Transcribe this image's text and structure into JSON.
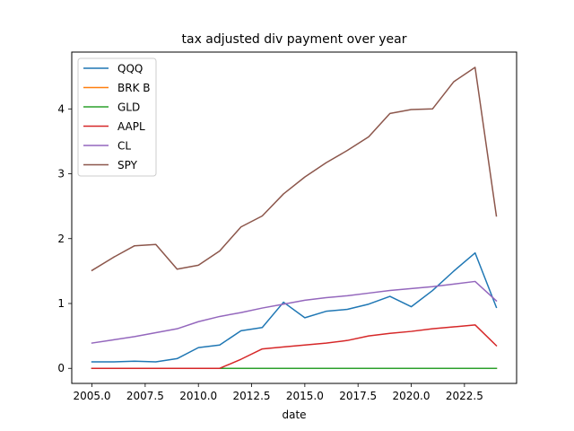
{
  "chart_data": {
    "type": "line",
    "title": "tax adjusted div payment over year",
    "xlabel": "date",
    "ylabel": "",
    "xlim": [
      2004.05,
      2024.95
    ],
    "ylim": [
      -0.232,
      4.876
    ],
    "xticks": [
      2005,
      2007.5,
      2010,
      2012.5,
      2015,
      2017.5,
      2020,
      2022.5
    ],
    "xtick_labels": [
      "2005.0",
      "2007.5",
      "2010.0",
      "2012.5",
      "2015.0",
      "2017.5",
      "2020.0",
      "2022.5"
    ],
    "yticks": [
      0,
      1,
      2,
      3,
      4
    ],
    "ytick_labels": [
      "0",
      "1",
      "2",
      "3",
      "4"
    ],
    "grid": false,
    "legend_position": "upper-left",
    "x": [
      2005,
      2006,
      2007,
      2008,
      2009,
      2010,
      2011,
      2012,
      2013,
      2014,
      2015,
      2016,
      2017,
      2018,
      2019,
      2020,
      2021,
      2022,
      2023,
      2024
    ],
    "series": [
      {
        "name": "QQQ",
        "color": "#1f77b4",
        "values": [
          0.1,
          0.1,
          0.11,
          0.1,
          0.15,
          0.32,
          0.36,
          0.58,
          0.63,
          1.02,
          0.78,
          0.88,
          0.91,
          0.99,
          1.11,
          0.95,
          1.2,
          1.5,
          1.78,
          0.94
        ]
      },
      {
        "name": "BRK B",
        "color": "#ff7f0e",
        "values": [
          0,
          0,
          0,
          0,
          0,
          0,
          0,
          0,
          0,
          0,
          0,
          0,
          0,
          0,
          0,
          0,
          0,
          0,
          0,
          0
        ]
      },
      {
        "name": "GLD",
        "color": "#2ca02c",
        "values": [
          0,
          0,
          0,
          0,
          0,
          0,
          0,
          0,
          0,
          0,
          0,
          0,
          0,
          0,
          0,
          0,
          0,
          0,
          0,
          0
        ]
      },
      {
        "name": "AAPL",
        "color": "#d62728",
        "values": [
          0,
          0,
          0,
          0,
          0,
          0,
          0,
          0.14,
          0.3,
          0.33,
          0.36,
          0.39,
          0.43,
          0.5,
          0.54,
          0.57,
          0.61,
          0.64,
          0.67,
          0.35
        ]
      },
      {
        "name": "CL",
        "color": "#9467bd",
        "values": [
          0.39,
          0.44,
          0.49,
          0.55,
          0.61,
          0.72,
          0.8,
          0.86,
          0.93,
          0.99,
          1.05,
          1.09,
          1.12,
          1.16,
          1.2,
          1.23,
          1.26,
          1.3,
          1.34,
          1.04
        ]
      },
      {
        "name": "SPY",
        "color": "#8c564b",
        "values": [
          1.51,
          1.71,
          1.89,
          1.91,
          1.53,
          1.59,
          1.81,
          2.18,
          2.35,
          2.69,
          2.95,
          3.17,
          3.36,
          3.57,
          3.93,
          3.99,
          4.0,
          4.42,
          4.64,
          2.35
        ]
      }
    ]
  }
}
